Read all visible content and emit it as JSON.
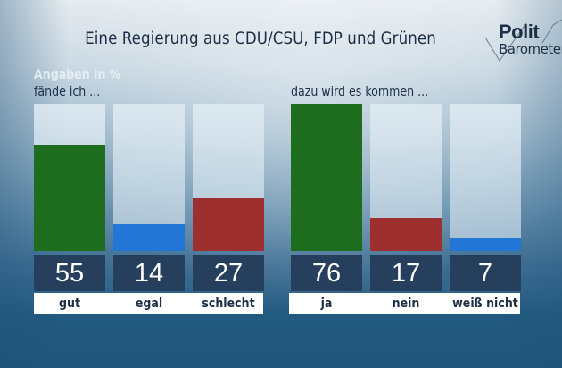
{
  "header": {
    "title": "Eine Regierung aus CDU/CSU, FDP und Grünen",
    "logo_line1": "Polit",
    "logo_line2": "Barometer"
  },
  "unit_note": "Angaben in %",
  "colors": {
    "green": "#1e6d1e",
    "blue": "#2277d6",
    "red": "#9d2f2e",
    "value_box": "#253f5c",
    "text_dark": "#1d2f46"
  },
  "chart_data": [
    {
      "type": "bar",
      "title": "fände ich ...",
      "categories": [
        "gut",
        "egal",
        "schlecht"
      ],
      "values": [
        55,
        14,
        27
      ],
      "colors": [
        "#1e6d1e",
        "#2277d6",
        "#9d2f2e"
      ],
      "ylabel": "Angaben in %",
      "ylim": [
        0,
        76
      ]
    },
    {
      "type": "bar",
      "title": "dazu wird es kommen ...",
      "categories": [
        "ja",
        "nein",
        "weiß nicht"
      ],
      "values": [
        76,
        17,
        7
      ],
      "colors": [
        "#1e6d1e",
        "#9d2f2e",
        "#2277d6"
      ],
      "ylabel": "Angaben in %",
      "ylim": [
        0,
        76
      ]
    }
  ]
}
